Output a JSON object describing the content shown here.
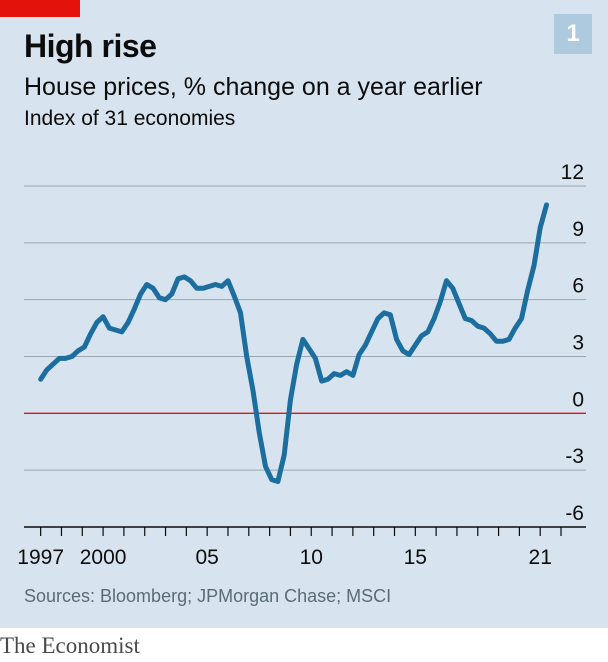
{
  "header": {
    "title": "High rise",
    "chart_number": "1",
    "subtitle": "House prices, % change on a year earlier",
    "note": "Index of 31 economies"
  },
  "footer": {
    "source": "Sources: Bloomberg; JPMorgan Chase; MSCI",
    "brand": "The Economist"
  },
  "colors": {
    "background": "#d7e4ef",
    "line": "#1c6e9e",
    "zero_line": "#e3120b",
    "grid": "#9aa6b0",
    "accent_tab": "#e3120b"
  },
  "chart_data": {
    "type": "line",
    "title": "High rise",
    "subtitle": "House prices, % change on a year earlier",
    "ylim": [
      -6,
      12
    ],
    "y_ticks": [
      12,
      9,
      6,
      3,
      0,
      -3,
      -6
    ],
    "y_tick_labels": [
      "12",
      "9",
      "6",
      "3",
      "0",
      "-3",
      "-6"
    ],
    "x_tick_labels": [
      {
        "year": 1997,
        "label": "1997"
      },
      {
        "year": 2000,
        "label": "2000"
      },
      {
        "year": 2005,
        "label": "05"
      },
      {
        "year": 2010,
        "label": "10"
      },
      {
        "year": 2015,
        "label": "15"
      },
      {
        "year": 2021,
        "label": "21"
      }
    ],
    "grid": true,
    "series": [
      {
        "x": [
          1997.0,
          1997.3,
          1997.6,
          1997.9,
          1998.2,
          1998.5,
          1998.8,
          1999.1,
          1999.4,
          1999.7,
          2000.0,
          2000.3,
          2000.6,
          2000.9,
          2001.2,
          2001.5,
          2001.8,
          2002.1,
          2002.4,
          2002.7,
          2003.0,
          2003.3,
          2003.6,
          2003.9,
          2004.2,
          2004.5,
          2004.8,
          2005.1,
          2005.4,
          2005.7,
          2006.0,
          2006.3,
          2006.6,
          2006.9,
          2007.2,
          2007.5,
          2007.8,
          2008.1,
          2008.4,
          2008.7,
          2009.0,
          2009.3,
          2009.6,
          2009.9,
          2010.2,
          2010.5,
          2010.8,
          2011.1,
          2011.4,
          2011.7,
          2012.0,
          2012.3,
          2012.6,
          2012.9,
          2013.2,
          2013.5,
          2013.8,
          2014.1,
          2014.4,
          2014.7,
          2015.0,
          2015.3,
          2015.6,
          2015.9,
          2016.2,
          2016.5,
          2016.8,
          2017.1,
          2017.4,
          2017.7,
          2018.0,
          2018.3,
          2018.6,
          2018.9,
          2019.2,
          2019.5,
          2019.8,
          2020.1,
          2020.4,
          2020.7,
          2021.0,
          2021.3
        ],
        "y": [
          1.8,
          2.3,
          2.6,
          2.9,
          2.9,
          3.0,
          3.3,
          3.5,
          4.2,
          4.8,
          5.1,
          4.5,
          4.4,
          4.3,
          4.8,
          5.5,
          6.3,
          6.8,
          6.6,
          6.1,
          6.0,
          6.3,
          7.1,
          7.2,
          7.0,
          6.6,
          6.6,
          6.7,
          6.8,
          6.7,
          7.0,
          6.2,
          5.3,
          3.0,
          1.2,
          -1.0,
          -2.8,
          -3.5,
          -3.6,
          -2.2,
          0.7,
          2.6,
          3.9,
          3.4,
          2.9,
          1.7,
          1.8,
          2.1,
          2.0,
          2.2,
          2.0,
          3.1,
          3.6,
          4.3,
          5.0,
          5.3,
          5.2,
          3.9,
          3.3,
          3.1,
          3.6,
          4.1,
          4.3,
          5.0,
          5.9,
          7.0,
          6.6,
          5.8,
          5.0,
          4.9,
          4.6,
          4.5,
          4.2,
          3.8,
          3.8,
          3.9,
          4.5,
          5.0,
          6.5,
          7.8,
          9.8,
          11.0
        ]
      }
    ]
  }
}
